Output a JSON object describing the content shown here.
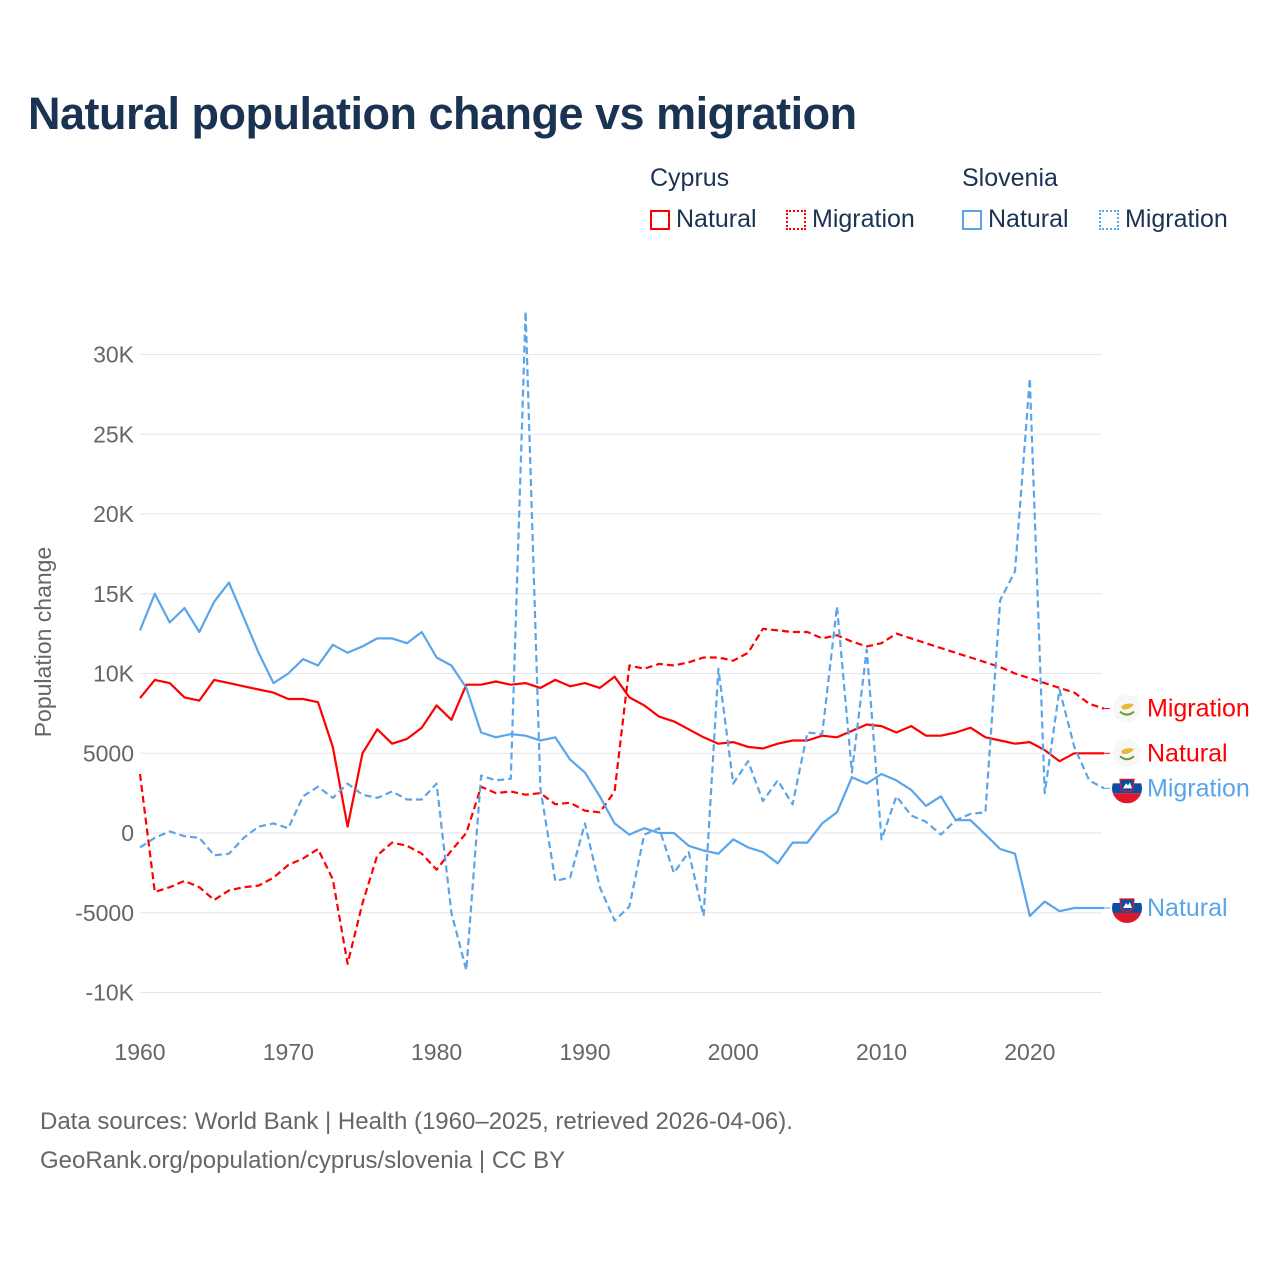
{
  "chart_data": {
    "type": "line",
    "title": "Natural population change vs migration",
    "xlabel": "",
    "ylabel": "Population change",
    "xlim": [
      1960,
      2025
    ],
    "ylim": [
      -10000,
      30000
    ],
    "grid": true,
    "legend_placement": "top-right",
    "x_ticks": [
      1960,
      1970,
      1980,
      1990,
      2000,
      2010,
      2020
    ],
    "x_tick_labels": [
      "1960",
      "1970",
      "1980",
      "1990",
      "2000",
      "2010",
      "2020"
    ],
    "y_ticks": [
      -10000,
      -5000,
      0,
      5000,
      10000,
      15000,
      20000,
      25000,
      30000
    ],
    "y_tick_labels": [
      "-10K",
      "-5000",
      "0",
      "5000",
      "10K",
      "15K",
      "20K",
      "25K",
      "30K"
    ],
    "x_start": 1960,
    "series": [
      {
        "country": "Cyprus",
        "name": "Natural",
        "color": "#ff0000",
        "dash": "solid",
        "flag": "cyprus",
        "values": [
          8460,
          9600,
          9400,
          8500,
          8300,
          9600,
          9400,
          9200,
          9000,
          8800,
          8400,
          8400,
          8200,
          5400,
          400,
          5000,
          6500,
          5600,
          5900,
          6600,
          8000,
          7100,
          9300,
          9300,
          9500,
          9300,
          9400,
          9100,
          9600,
          9200,
          9400,
          9100,
          9800,
          8500,
          8000,
          7300,
          7000,
          6500,
          6000,
          5600,
          5700,
          5400,
          5300,
          5600,
          5800,
          5800,
          6100,
          6000,
          6400,
          6800,
          6700,
          6300,
          6700,
          6100,
          6100,
          6300,
          6600,
          6000,
          5800,
          5600,
          5700,
          5200,
          4500,
          5000,
          5000,
          5000
        ]
      },
      {
        "country": "Cyprus",
        "name": "Migration",
        "color": "#ff0000",
        "dash": "dashed",
        "flag": "cyprus",
        "values": [
          3700,
          -3700,
          -3400,
          -3000,
          -3400,
          -4200,
          -3600,
          -3400,
          -3300,
          -2800,
          -2000,
          -1600,
          -1000,
          -2900,
          -8200,
          -4400,
          -1400,
          -600,
          -800,
          -1300,
          -2300,
          -1100,
          0,
          2900,
          2500,
          2600,
          2400,
          2500,
          1800,
          1900,
          1400,
          1300,
          2600,
          10500,
          10300,
          10600,
          10500,
          10700,
          11000,
          11000,
          10800,
          11300,
          12800,
          12700,
          12600,
          12600,
          12200,
          12400,
          12000,
          11700,
          11900,
          12500,
          12200,
          11900,
          11600,
          11300,
          11000,
          10700,
          10400,
          10000,
          9700,
          9400,
          9100,
          8800,
          8100,
          7800
        ]
      },
      {
        "country": "Slovenia",
        "name": "Natural",
        "color": "#5aa5ea",
        "dash": "solid",
        "flag": "slovenia",
        "values": [
          12700,
          15000,
          13200,
          14100,
          12600,
          14500,
          15700,
          13500,
          11300,
          9400,
          10000,
          10900,
          10500,
          11800,
          11300,
          11700,
          12200,
          12200,
          11900,
          12600,
          11000,
          10500,
          9100,
          6300,
          6000,
          6200,
          6100,
          5800,
          6000,
          4600,
          3800,
          2300,
          600,
          -100,
          300,
          0,
          0,
          -800,
          -1100,
          -1300,
          -400,
          -900,
          -1200,
          -1900,
          -600,
          -600,
          600,
          1300,
          3500,
          3100,
          3700,
          3300,
          2700,
          1700,
          2300,
          800,
          800,
          -100,
          -1000,
          -1300,
          -5200,
          -4300,
          -4900,
          -4700,
          -4700,
          -4700
        ]
      },
      {
        "country": "Slovenia",
        "name": "Migration",
        "color": "#5aa5ea",
        "dash": "dashed",
        "flag": "slovenia",
        "values": [
          -900,
          -300,
          100,
          -200,
          -300,
          -1400,
          -1300,
          -300,
          400,
          600,
          300,
          2300,
          2900,
          2200,
          3100,
          2400,
          2200,
          2600,
          2100,
          2100,
          3100,
          -5000,
          -8600,
          3600,
          3300,
          3400,
          32700,
          2800,
          -3000,
          -2800,
          600,
          -3400,
          -5500,
          -4600,
          -100,
          300,
          -2500,
          -1200,
          -5200,
          10300,
          3100,
          4500,
          2000,
          3300,
          1800,
          6300,
          6200,
          14200,
          3800,
          11500,
          -400,
          2300,
          1100,
          700,
          -100,
          800,
          1200,
          1300,
          14600,
          16400,
          28500,
          2500,
          9000,
          5400,
          3300,
          2800
        ]
      }
    ]
  },
  "legend": {
    "groups": [
      {
        "title": "Cyprus",
        "items": [
          "Natural",
          "Migration"
        ]
      },
      {
        "title": "Slovenia",
        "items": [
          "Natural",
          "Migration"
        ]
      }
    ]
  },
  "footer": {
    "line1": "Data sources: World Bank | Health (1960–2025, retrieved 2026-04-06).",
    "line2": "GeoRank.org/population/cyprus/slovenia | CC BY"
  }
}
